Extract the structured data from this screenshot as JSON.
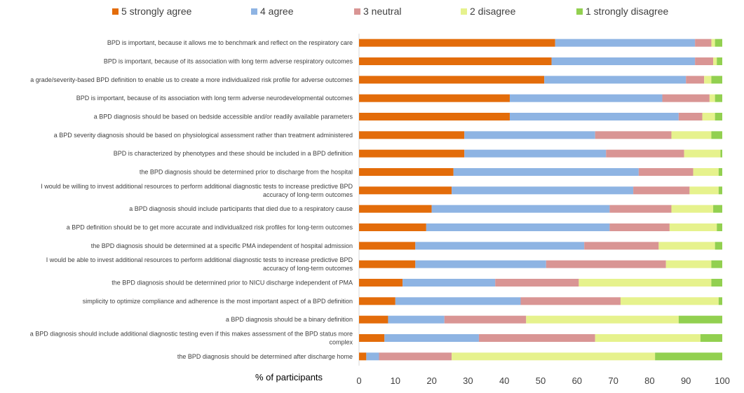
{
  "chart_data": {
    "type": "bar",
    "orientation": "horizontal",
    "stacked": true,
    "xlabel": "% of participants",
    "xlim": [
      0,
      100
    ],
    "xticks": [
      "0",
      "10",
      "20",
      "30",
      "40",
      "50",
      "60",
      "70",
      "80",
      "90",
      "100"
    ],
    "legend_position": "top",
    "categories": [
      [
        "BPD is important, because it allows me to benchmark and reflect on the respiratory care"
      ],
      [
        "BPD is important, because of its association with long term adverse respiratory outcomes"
      ],
      [
        "a grade/severity-based BPD definition to enable us to create a more individualized risk profile for adverse outcomes"
      ],
      [
        "BPD is important, because of its association with long term adverse neurodevelopmental outcomes"
      ],
      [
        "a BPD diagnosis should be based on bedside accessible and/or readily available parameters"
      ],
      [
        "a BPD severity diagnosis should be based on physiological assessment rather than treatment administered"
      ],
      [
        "BPD is characterized by phenotypes and these should be included in a BPD definition"
      ],
      [
        "the BPD diagnosis should be determined prior to discharge from the hospital"
      ],
      [
        "I would be willing to invest additional resources to perform additional diagnostic tests to increase predictive BPD",
        "accuracy of long-term outcomes"
      ],
      [
        "a BPD diagnosis should include participants that died due to a respiratory cause"
      ],
      [
        "a BPD definition should be to get more accurate and individualized risk profiles for long-term outcomes"
      ],
      [
        "the BPD diagnosis should be determined at a specific PMA independent of hospital admission"
      ],
      [
        "I would be  able to invest additional resources to perform additional diagnostic tests to increase predictive BPD",
        "accuracy of long-term outcomes"
      ],
      [
        "the BPD diagnosis should be determined prior to NICU discharge independent of PMA"
      ],
      [
        "simplicity to optimize compliance and adherence is the most important aspect of a BPD definition"
      ],
      [
        "a BPD diagnosis should be a binary definition"
      ],
      [
        "a BPD diagnosis should include additional diagnostic testing even if this makes assessment of the BPD status more",
        "complex"
      ],
      [
        "the BPD diagnosis should be determined after discharge home"
      ]
    ],
    "series": [
      {
        "name": "5 strongly agree",
        "color": "#E36C0A",
        "values": [
          54.0,
          53.0,
          51.0,
          41.5,
          41.5,
          29.0,
          29.0,
          26.0,
          25.5,
          20.0,
          18.5,
          15.5,
          15.5,
          12.0,
          10.0,
          8.0,
          7.0,
          2.0
        ]
      },
      {
        "name": "4 agree",
        "color": "#8EB4E3",
        "values": [
          38.5,
          39.5,
          39.0,
          42.0,
          46.5,
          36.0,
          39.0,
          51.0,
          50.0,
          49.0,
          50.5,
          46.5,
          36.0,
          25.5,
          34.5,
          15.5,
          26.0,
          3.5
        ]
      },
      {
        "name": "3 neutral",
        "color": "#D99594",
        "values": [
          4.5,
          5.0,
          5.0,
          13.0,
          6.5,
          21.0,
          21.5,
          15.0,
          15.5,
          17.0,
          16.5,
          20.5,
          33.0,
          23.0,
          27.5,
          22.5,
          32.0,
          20.0
        ]
      },
      {
        "name": "2 disagree",
        "color": "#E6F28D",
        "values": [
          1.0,
          1.0,
          2.0,
          1.5,
          3.5,
          11.0,
          10.0,
          7.0,
          8.0,
          11.5,
          13.0,
          15.5,
          12.5,
          36.5,
          27.0,
          42.0,
          29.0,
          56.0
        ]
      },
      {
        "name": "1 strongly disagree",
        "color": "#92D050",
        "values": [
          2.0,
          1.5,
          3.0,
          2.0,
          2.0,
          3.0,
          0.5,
          1.0,
          1.0,
          2.5,
          1.5,
          2.0,
          3.0,
          3.0,
          1.0,
          12.0,
          6.0,
          18.5
        ]
      }
    ]
  }
}
